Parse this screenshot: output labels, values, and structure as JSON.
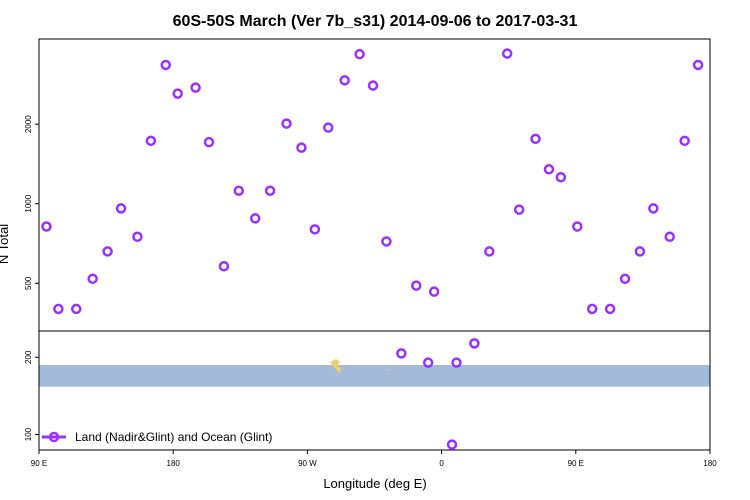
{
  "chart_data": {
    "type": "scatter",
    "title": "60S-50S March (Ver 7b_s31)   2014-09-06 to 2017-03-31",
    "xlabel": "Longitude (deg E)",
    "ylabel": "N Total",
    "x_ticks": [
      "90 E",
      "180",
      "90 W",
      "0",
      "90 E",
      "180"
    ],
    "x_tick_values": [
      90,
      180,
      270,
      360,
      450,
      540
    ],
    "xlim": [
      90,
      540
    ],
    "upper_panel": {
      "scale": "log",
      "ylim": [
        330,
        4200
      ],
      "y_ticks": [
        "500",
        "1000",
        "2000"
      ],
      "y_tick_values": [
        500,
        1000,
        2000
      ]
    },
    "lower_panel": {
      "scale": "linear",
      "ylim": [
        80,
        234
      ],
      "y_ticks": [
        "100",
        "200"
      ],
      "y_tick_values": [
        100,
        200
      ],
      "band": {
        "from": 162,
        "to": 190,
        "color": "#a3bad9"
      }
    },
    "series": [
      {
        "name": "Land (Nadir&Glint) and Ocean (Glint)",
        "color": "#9b30ff",
        "points": [
          {
            "x": 95,
            "y": 820
          },
          {
            "x": 103,
            "y": 400
          },
          {
            "x": 115,
            "y": 400
          },
          {
            "x": 126,
            "y": 520
          },
          {
            "x": 136,
            "y": 660
          },
          {
            "x": 145,
            "y": 960
          },
          {
            "x": 156,
            "y": 750
          },
          {
            "x": 165,
            "y": 1730
          },
          {
            "x": 175,
            "y": 3350
          },
          {
            "x": 183,
            "y": 2610
          },
          {
            "x": 195,
            "y": 2750
          },
          {
            "x": 204,
            "y": 1710
          },
          {
            "x": 214,
            "y": 580
          },
          {
            "x": 224,
            "y": 1120
          },
          {
            "x": 235,
            "y": 880
          },
          {
            "x": 245,
            "y": 1120
          },
          {
            "x": 256,
            "y": 2010
          },
          {
            "x": 266,
            "y": 1630
          },
          {
            "x": 275,
            "y": 800
          },
          {
            "x": 284,
            "y": 1940
          },
          {
            "x": 295,
            "y": 2930
          },
          {
            "x": 305,
            "y": 3680
          },
          {
            "x": 314,
            "y": 2800
          },
          {
            "x": 323,
            "y": 720
          },
          {
            "x": 333,
            "y": 205
          },
          {
            "x": 343,
            "y": 490
          },
          {
            "x": 351,
            "y": 193
          },
          {
            "x": 355,
            "y": 465
          },
          {
            "x": 367,
            "y": 87
          },
          {
            "x": 370,
            "y": 193
          },
          {
            "x": 382,
            "y": 218
          },
          {
            "x": 392,
            "y": 660
          },
          {
            "x": 404,
            "y": 3700
          },
          {
            "x": 412,
            "y": 950
          },
          {
            "x": 423,
            "y": 1760
          },
          {
            "x": 432,
            "y": 1350
          },
          {
            "x": 440,
            "y": 1260
          },
          {
            "x": 451,
            "y": 820
          },
          {
            "x": 461,
            "y": 400
          },
          {
            "x": 473,
            "y": 400
          },
          {
            "x": 483,
            "y": 520
          },
          {
            "x": 493,
            "y": 660
          },
          {
            "x": 502,
            "y": 960
          },
          {
            "x": 513,
            "y": 750
          },
          {
            "x": 523,
            "y": 1730
          },
          {
            "x": 532,
            "y": 3350
          }
        ]
      }
    ],
    "legend": {
      "position": "bottom-left",
      "label": "Land (Nadir&Glint) and Ocean (Glint)"
    }
  }
}
